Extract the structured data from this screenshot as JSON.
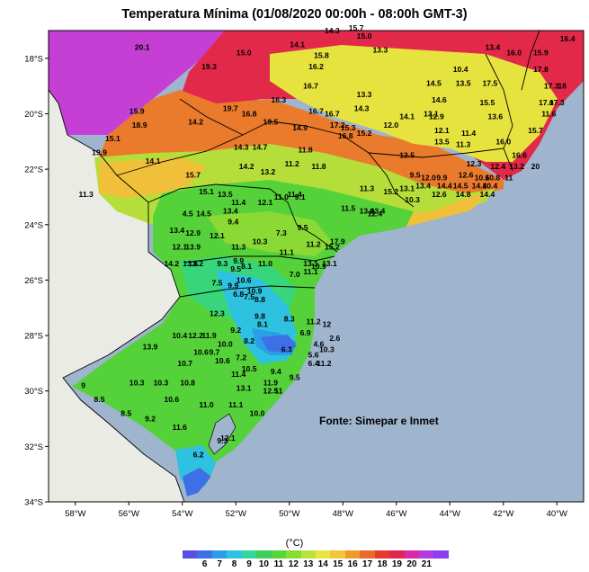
{
  "title": "Temperatura Mínima (01/08/2020 00:00h - 08:00h GMT-3)",
  "source_note": "Fonte: Simepar e Inmet",
  "colorbar": {
    "unit": "(°C)",
    "labels": [
      "6",
      "7",
      "8",
      "9",
      "10",
      "11",
      "12",
      "13",
      "14",
      "15",
      "16",
      "17",
      "18",
      "19",
      "20",
      "21"
    ],
    "colors": [
      "#5b4fe0",
      "#3d6fe6",
      "#2b9ee8",
      "#2fc2e0",
      "#34d6a0",
      "#3ccf5c",
      "#55d63a",
      "#86dd33",
      "#b9e23a",
      "#e6e640",
      "#f2c63a",
      "#ef9a2e",
      "#ea6a2a",
      "#e53a2e",
      "#e2264e",
      "#d62aa8",
      "#b33ce0",
      "#8b3ef0"
    ]
  },
  "axes": {
    "x_ticks": [
      "58°W",
      "56°W",
      "54°W",
      "52°W",
      "50°W",
      "48°W",
      "46°W",
      "44°W",
      "42°W",
      "40°W"
    ],
    "y_ticks": [
      "18°S",
      "20°S",
      "22°S",
      "24°S",
      "26°S",
      "28°S",
      "30°S",
      "32°S",
      "34°S"
    ]
  },
  "stations": [
    {
      "lon": -55.5,
      "lat": -17.6,
      "v": "20.1"
    },
    {
      "lon": -53.0,
      "lat": -18.3,
      "v": "19.3"
    },
    {
      "lon": -51.7,
      "lat": -17.8,
      "v": "15.0"
    },
    {
      "lon": -49.7,
      "lat": -17.5,
      "v": "14.1"
    },
    {
      "lon": -48.4,
      "lat": -17.0,
      "v": "14.3"
    },
    {
      "lon": -47.5,
      "lat": -16.9,
      "v": "15.7"
    },
    {
      "lon": -48.8,
      "lat": -17.9,
      "v": "15.8"
    },
    {
      "lon": -49.0,
      "lat": -18.3,
      "v": "16.2"
    },
    {
      "lon": -46.6,
      "lat": -17.7,
      "v": "13.3"
    },
    {
      "lon": -47.2,
      "lat": -17.2,
      "v": "15.0"
    },
    {
      "lon": -43.6,
      "lat": -18.4,
      "v": "10.4"
    },
    {
      "lon": -42.4,
      "lat": -17.6,
      "v": "13.4"
    },
    {
      "lon": -41.6,
      "lat": -17.8,
      "v": "16.0"
    },
    {
      "lon": -40.6,
      "lat": -17.8,
      "v": "15.9"
    },
    {
      "lon": -39.6,
      "lat": -17.3,
      "v": "16.4"
    },
    {
      "lon": -40.6,
      "lat": -18.4,
      "v": "17.8"
    },
    {
      "lon": -40.2,
      "lat": -19.0,
      "v": "17.3"
    },
    {
      "lon": -39.8,
      "lat": -19.0,
      "v": "18"
    },
    {
      "lon": -40.4,
      "lat": -19.6,
      "v": "17.0"
    },
    {
      "lon": -40.0,
      "lat": -19.6,
      "v": "17.3"
    },
    {
      "lon": -44.6,
      "lat": -18.9,
      "v": "14.5"
    },
    {
      "lon": -43.5,
      "lat": -18.9,
      "v": "13.5"
    },
    {
      "lon": -42.5,
      "lat": -18.9,
      "v": "17.5"
    },
    {
      "lon": -47.2,
      "lat": -19.3,
      "v": "13.3"
    },
    {
      "lon": -49.2,
      "lat": -19.0,
      "v": "16.7"
    },
    {
      "lon": -50.4,
      "lat": -19.5,
      "v": "16.3"
    },
    {
      "lon": -52.2,
      "lat": -19.8,
      "v": "19.7"
    },
    {
      "lon": -51.5,
      "lat": -20.0,
      "v": "16.8"
    },
    {
      "lon": -50.7,
      "lat": -20.3,
      "v": "19.5"
    },
    {
      "lon": -49.0,
      "lat": -19.9,
      "v": "16.7"
    },
    {
      "lon": -48.4,
      "lat": -20.0,
      "v": "16.7"
    },
    {
      "lon": -47.3,
      "lat": -19.8,
      "v": "14.3"
    },
    {
      "lon": -44.4,
      "lat": -19.5,
      "v": "14.6"
    },
    {
      "lon": -42.6,
      "lat": -19.6,
      "v": "15.5"
    },
    {
      "lon": -44.7,
      "lat": -20.0,
      "v": "13.1"
    },
    {
      "lon": -44.5,
      "lat": -20.1,
      "v": "12.9"
    },
    {
      "lon": -45.6,
      "lat": -20.1,
      "v": "14.1"
    },
    {
      "lon": -42.3,
      "lat": -20.1,
      "v": "13.6"
    },
    {
      "lon": -40.3,
      "lat": -20.0,
      "v": "11.6"
    },
    {
      "lon": -55.7,
      "lat": -19.9,
      "v": "15.9"
    },
    {
      "lon": -55.6,
      "lat": -20.4,
      "v": "18.9"
    },
    {
      "lon": -53.5,
      "lat": -20.3,
      "v": "14.2"
    },
    {
      "lon": -49.6,
      "lat": -20.5,
      "v": "14.9"
    },
    {
      "lon": -48.2,
      "lat": -20.4,
      "v": "17.2"
    },
    {
      "lon": -47.8,
      "lat": -20.5,
      "v": "15.3"
    },
    {
      "lon": -47.2,
      "lat": -20.7,
      "v": "15.2"
    },
    {
      "lon": -46.2,
      "lat": -20.4,
      "v": "12.0"
    },
    {
      "lon": -44.3,
      "lat": -20.6,
      "v": "12.1"
    },
    {
      "lon": -43.3,
      "lat": -20.7,
      "v": "11.4"
    },
    {
      "lon": -42.0,
      "lat": -21.0,
      "v": "16.0"
    },
    {
      "lon": -40.8,
      "lat": -20.6,
      "v": "15.7"
    },
    {
      "lon": -56.6,
      "lat": -20.9,
      "v": "15.1"
    },
    {
      "lon": -51.8,
      "lat": -21.2,
      "v": "14.3"
    },
    {
      "lon": -51.1,
      "lat": -21.2,
      "v": "14.7"
    },
    {
      "lon": -49.4,
      "lat": -21.3,
      "v": "11.8"
    },
    {
      "lon": -47.9,
      "lat": -20.8,
      "v": "16.8"
    },
    {
      "lon": -45.6,
      "lat": -21.5,
      "v": "12.5"
    },
    {
      "lon": -44.3,
      "lat": -21.0,
      "v": "13.5"
    },
    {
      "lon": -43.5,
      "lat": -21.1,
      "v": "11.3"
    },
    {
      "lon": -41.4,
      "lat": -21.5,
      "v": "16.6"
    },
    {
      "lon": -57.1,
      "lat": -21.4,
      "v": "19.9"
    },
    {
      "lon": -55.1,
      "lat": -21.7,
      "v": "14.1"
    },
    {
      "lon": -51.6,
      "lat": -21.9,
      "v": "14.2"
    },
    {
      "lon": -49.9,
      "lat": -21.8,
      "v": "11.2"
    },
    {
      "lon": -48.9,
      "lat": -21.9,
      "v": "11.8"
    },
    {
      "lon": -43.1,
      "lat": -21.8,
      "v": "12.3"
    },
    {
      "lon": -42.2,
      "lat": -21.9,
      "v": "12.4"
    },
    {
      "lon": -41.5,
      "lat": -21.9,
      "v": "13.2"
    },
    {
      "lon": -40.8,
      "lat": -21.9,
      "v": "20"
    },
    {
      "lon": -53.6,
      "lat": -22.2,
      "v": "15.7"
    },
    {
      "lon": -50.8,
      "lat": -22.1,
      "v": "13.2"
    },
    {
      "lon": -45.3,
      "lat": -22.2,
      "v": "9.5"
    },
    {
      "lon": -44.8,
      "lat": -22.3,
      "v": "12.0"
    },
    {
      "lon": -44.3,
      "lat": -22.3,
      "v": "9.9"
    },
    {
      "lon": -43.4,
      "lat": -22.2,
      "v": "12.6"
    },
    {
      "lon": -42.8,
      "lat": -22.3,
      "v": "10.6"
    },
    {
      "lon": -42.4,
      "lat": -22.3,
      "v": "10.8"
    },
    {
      "lon": -41.8,
      "lat": -22.3,
      "v": "11"
    },
    {
      "lon": -57.6,
      "lat": -22.9,
      "v": "11.3"
    },
    {
      "lon": -53.1,
      "lat": -22.8,
      "v": "15.1"
    },
    {
      "lon": -52.4,
      "lat": -22.9,
      "v": "13.5"
    },
    {
      "lon": -47.1,
      "lat": -22.7,
      "v": "11.3"
    },
    {
      "lon": -46.2,
      "lat": -22.8,
      "v": "15.2"
    },
    {
      "lon": -45.6,
      "lat": -22.7,
      "v": "13.1"
    },
    {
      "lon": -45.0,
      "lat": -22.6,
      "v": "13.4"
    },
    {
      "lon": -44.2,
      "lat": -22.6,
      "v": "14.4"
    },
    {
      "lon": -43.6,
      "lat": -22.6,
      "v": "14.5"
    },
    {
      "lon": -42.9,
      "lat": -22.6,
      "v": "14.4"
    },
    {
      "lon": -42.5,
      "lat": -22.6,
      "v": "10.4"
    },
    {
      "lon": -49.8,
      "lat": -22.9,
      "v": "11.4"
    },
    {
      "lon": -50.3,
      "lat": -23.0,
      "v": "11.0"
    },
    {
      "lon": -50.9,
      "lat": -23.2,
      "v": "12.1"
    },
    {
      "lon": -51.9,
      "lat": -23.2,
      "v": "11.4"
    },
    {
      "lon": -45.4,
      "lat": -23.1,
      "v": "10.3"
    },
    {
      "lon": -44.4,
      "lat": -22.9,
      "v": "12.6"
    },
    {
      "lon": -43.5,
      "lat": -22.9,
      "v": "14.8"
    },
    {
      "lon": -42.6,
      "lat": -22.9,
      "v": "14.4"
    },
    {
      "lon": -49.6,
      "lat": -23.0,
      "v": "9.1"
    },
    {
      "lon": -53.8,
      "lat": -23.6,
      "v": "4.5"
    },
    {
      "lon": -53.2,
      "lat": -23.6,
      "v": "14.5"
    },
    {
      "lon": -52.2,
      "lat": -23.5,
      "v": "13.4"
    },
    {
      "lon": -47.8,
      "lat": -23.4,
      "v": "11.5"
    },
    {
      "lon": -47.1,
      "lat": -23.5,
      "v": "13.0"
    },
    {
      "lon": -46.7,
      "lat": -23.5,
      "v": "13.4"
    },
    {
      "lon": -46.8,
      "lat": -23.6,
      "v": "12.4"
    },
    {
      "lon": -52.1,
      "lat": -23.9,
      "v": "9.4"
    },
    {
      "lon": -49.5,
      "lat": -24.1,
      "v": "9.5"
    },
    {
      "lon": -54.2,
      "lat": -24.2,
      "v": "13.4"
    },
    {
      "lon": -53.6,
      "lat": -24.3,
      "v": "12.9"
    },
    {
      "lon": -52.7,
      "lat": -24.4,
      "v": "12.1"
    },
    {
      "lon": -50.3,
      "lat": -24.3,
      "v": "7.3"
    },
    {
      "lon": -51.1,
      "lat": -24.6,
      "v": "10.3"
    },
    {
      "lon": -48.2,
      "lat": -24.6,
      "v": "17.9"
    },
    {
      "lon": -54.1,
      "lat": -24.8,
      "v": "12.1"
    },
    {
      "lon": -53.6,
      "lat": -24.8,
      "v": "13.9"
    },
    {
      "lon": -51.9,
      "lat": -24.8,
      "v": "11.3"
    },
    {
      "lon": -49.1,
      "lat": -24.7,
      "v": "11.2"
    },
    {
      "lon": -50.1,
      "lat": -25.0,
      "v": "11.1"
    },
    {
      "lon": -48.4,
      "lat": -24.8,
      "v": "15.2"
    },
    {
      "lon": -54.4,
      "lat": -25.4,
      "v": "14.2"
    },
    {
      "lon": -53.5,
      "lat": -25.4,
      "v": "13.2"
    },
    {
      "lon": -53.7,
      "lat": -25.4,
      "v": "13.6"
    },
    {
      "lon": -52.5,
      "lat": -25.4,
      "v": "9.3"
    },
    {
      "lon": -51.9,
      "lat": -25.3,
      "v": "9.9"
    },
    {
      "lon": -50.9,
      "lat": -25.4,
      "v": "11.0"
    },
    {
      "lon": -49.2,
      "lat": -25.4,
      "v": "13.1"
    },
    {
      "lon": -48.9,
      "lat": -25.5,
      "v": "10.9"
    },
    {
      "lon": -48.5,
      "lat": -25.4,
      "v": "13.1"
    },
    {
      "lon": -52.0,
      "lat": -25.6,
      "v": "9.5"
    },
    {
      "lon": -51.6,
      "lat": -25.5,
      "v": "8.1"
    },
    {
      "lon": -49.8,
      "lat": -25.8,
      "v": "7.0"
    },
    {
      "lon": -49.2,
      "lat": -25.7,
      "v": "11.1"
    },
    {
      "lon": -52.7,
      "lat": -26.1,
      "v": "7.5"
    },
    {
      "lon": -52.1,
      "lat": -26.2,
      "v": "9.9"
    },
    {
      "lon": -51.7,
      "lat": -26.0,
      "v": "10.6"
    },
    {
      "lon": -51.3,
      "lat": -26.4,
      "v": "10.9"
    },
    {
      "lon": -51.9,
      "lat": -26.5,
      "v": "6.8"
    },
    {
      "lon": -51.5,
      "lat": -26.6,
      "v": "7.5"
    },
    {
      "lon": -51.1,
      "lat": -26.7,
      "v": "8.8"
    },
    {
      "lon": -52.7,
      "lat": -27.2,
      "v": "12.3"
    },
    {
      "lon": -51.1,
      "lat": -27.3,
      "v": "9.8"
    },
    {
      "lon": -50.0,
      "lat": -27.4,
      "v": "8.3"
    },
    {
      "lon": -49.1,
      "lat": -27.5,
      "v": "11.2"
    },
    {
      "lon": -48.6,
      "lat": -27.6,
      "v": "12"
    },
    {
      "lon": -51.0,
      "lat": -27.6,
      "v": "8.1"
    },
    {
      "lon": -52.0,
      "lat": -27.8,
      "v": "9.2"
    },
    {
      "lon": -49.4,
      "lat": -27.9,
      "v": "6.9"
    },
    {
      "lon": -54.1,
      "lat": -28.0,
      "v": "10.4"
    },
    {
      "lon": -53.5,
      "lat": -28.0,
      "v": "12.2"
    },
    {
      "lon": -53.0,
      "lat": -28.0,
      "v": "11.9"
    },
    {
      "lon": -48.3,
      "lat": -28.1,
      "v": "2.6"
    },
    {
      "lon": -52.4,
      "lat": -28.3,
      "v": "10.0"
    },
    {
      "lon": -51.5,
      "lat": -28.2,
      "v": "8.2"
    },
    {
      "lon": -48.9,
      "lat": -28.3,
      "v": "4.6"
    },
    {
      "lon": -55.2,
      "lat": -28.4,
      "v": "13.9"
    },
    {
      "lon": -50.1,
      "lat": -28.5,
      "v": "6.3"
    },
    {
      "lon": -48.6,
      "lat": -28.5,
      "v": "10.3"
    },
    {
      "lon": -53.3,
      "lat": -28.6,
      "v": "10.6"
    },
    {
      "lon": -52.8,
      "lat": -28.6,
      "v": "9.7"
    },
    {
      "lon": -51.8,
      "lat": -28.8,
      "v": "7.2"
    },
    {
      "lon": -52.5,
      "lat": -28.9,
      "v": "10.6"
    },
    {
      "lon": -49.1,
      "lat": -28.7,
      "v": "5.6"
    },
    {
      "lon": -49.1,
      "lat": -29.0,
      "v": "6.4"
    },
    {
      "lon": -48.7,
      "lat": -29.0,
      "v": "11.2"
    },
    {
      "lon": -53.9,
      "lat": -29.0,
      "v": "10.7"
    },
    {
      "lon": -51.5,
      "lat": -29.2,
      "v": "10.5"
    },
    {
      "lon": -50.5,
      "lat": -29.3,
      "v": "9.4"
    },
    {
      "lon": -51.9,
      "lat": -29.4,
      "v": "11.4"
    },
    {
      "lon": -50.7,
      "lat": -29.7,
      "v": "11.9"
    },
    {
      "lon": -49.8,
      "lat": -29.5,
      "v": "9.5"
    },
    {
      "lon": -57.7,
      "lat": -29.8,
      "v": "9"
    },
    {
      "lon": -55.7,
      "lat": -29.7,
      "v": "10.3"
    },
    {
      "lon": -54.8,
      "lat": -29.7,
      "v": "10.3"
    },
    {
      "lon": -53.8,
      "lat": -29.7,
      "v": "10.8"
    },
    {
      "lon": -51.7,
      "lat": -29.9,
      "v": "13.1"
    },
    {
      "lon": -50.7,
      "lat": -30.0,
      "v": "12.5"
    },
    {
      "lon": -50.4,
      "lat": -30.0,
      "v": "11"
    },
    {
      "lon": -57.1,
      "lat": -30.3,
      "v": "8.5"
    },
    {
      "lon": -54.4,
      "lat": -30.3,
      "v": "10.6"
    },
    {
      "lon": -53.1,
      "lat": -30.5,
      "v": "11.0"
    },
    {
      "lon": -52.0,
      "lat": -30.5,
      "v": "11.1"
    },
    {
      "lon": -51.2,
      "lat": -30.8,
      "v": "10.0"
    },
    {
      "lon": -56.1,
      "lat": -30.8,
      "v": "8.5"
    },
    {
      "lon": -55.2,
      "lat": -31.0,
      "v": "9.2"
    },
    {
      "lon": -54.1,
      "lat": -31.3,
      "v": "11.6"
    },
    {
      "lon": -52.5,
      "lat": -31.8,
      "v": "9.3"
    },
    {
      "lon": -52.3,
      "lat": -31.7,
      "v": "12.1"
    },
    {
      "lon": -53.4,
      "lat": -32.3,
      "v": "6.2"
    }
  ]
}
